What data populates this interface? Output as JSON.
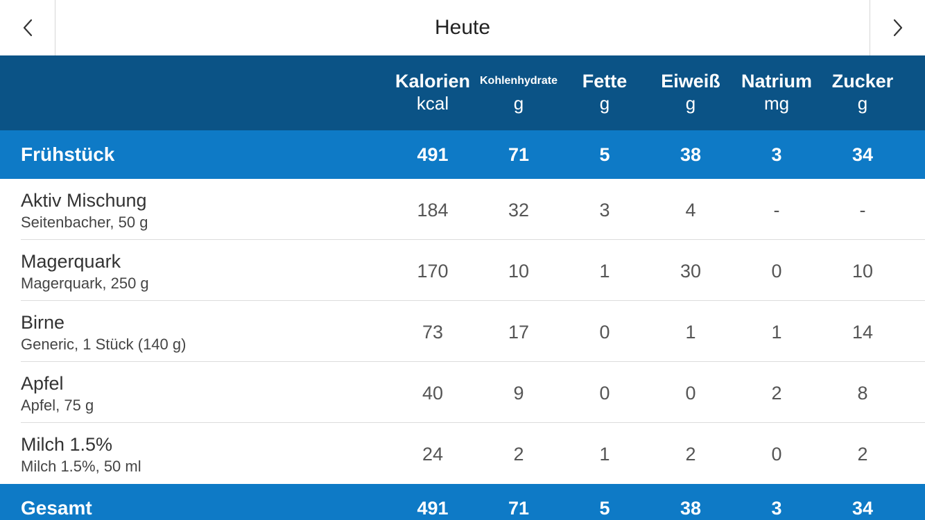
{
  "header": {
    "title": "Heute",
    "prev_icon": "chevron-left-icon",
    "next_icon": "chevron-right-icon"
  },
  "columns": [
    {
      "name": "Kalorien",
      "unit": "kcal"
    },
    {
      "name": "Kohlenhydrate",
      "unit": "g"
    },
    {
      "name": "Fette",
      "unit": "g"
    },
    {
      "name": "Eiweiß",
      "unit": "g"
    },
    {
      "name": "Natrium",
      "unit": "mg"
    },
    {
      "name": "Zucker",
      "unit": "g"
    }
  ],
  "meal": {
    "label": "Frühstück",
    "values": [
      "491",
      "71",
      "5",
      "38",
      "3",
      "34"
    ]
  },
  "items": [
    {
      "name": "Aktiv Mischung",
      "desc": "Seitenbacher, 50 g",
      "values": [
        "184",
        "32",
        "3",
        "4",
        "-",
        "-"
      ]
    },
    {
      "name": "Magerquark",
      "desc": "Magerquark, 250 g",
      "values": [
        "170",
        "10",
        "1",
        "30",
        "0",
        "10"
      ]
    },
    {
      "name": "Birne",
      "desc": "Generic, 1 Stück (140 g)",
      "values": [
        "73",
        "17",
        "0",
        "1",
        "1",
        "14"
      ]
    },
    {
      "name": "Apfel",
      "desc": "Apfel, 75 g",
      "values": [
        "40",
        "9",
        "0",
        "0",
        "2",
        "8"
      ]
    },
    {
      "name": "Milch 1.5%",
      "desc": "Milch 1.5%, 50 ml",
      "values": [
        "24",
        "2",
        "1",
        "2",
        "0",
        "2"
      ]
    }
  ],
  "total": {
    "label": "Gesamt",
    "values": [
      "491",
      "71",
      "5",
      "38",
      "3",
      "34"
    ]
  },
  "colors": {
    "header_bg": "#0b5386",
    "section_bg": "#0e7ac6"
  }
}
